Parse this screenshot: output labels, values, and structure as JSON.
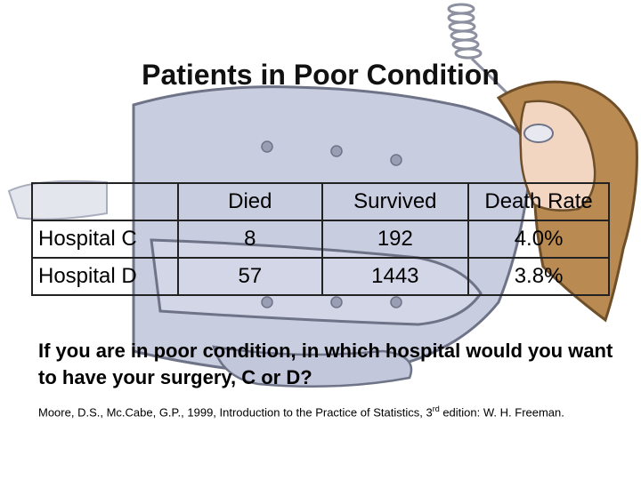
{
  "title": "Patients in Poor Condition",
  "table": {
    "headers": [
      "",
      "Died",
      "Survived",
      "Death Rate"
    ],
    "rows": [
      {
        "label": "Hospital C",
        "died": "8",
        "survived": "192",
        "rate": "4.0%"
      },
      {
        "label": "Hospital D",
        "died": "57",
        "survived": "1443",
        "rate": "3.8%"
      }
    ]
  },
  "question": "If you are in poor condition, in which hospital would you want to have your surgery, C or D?",
  "citation": {
    "text": "Moore, D.S., Mc.Cabe, G.P., 1999, Introduction to the Practice of Statistics, 3",
    "sup": "rd",
    "tail": " edition: W. H. Freeman."
  },
  "colors": {
    "gown": "#c9cde0",
    "gown_outline": "#6f7387",
    "hair": "#b98a52",
    "skin": "#f2d6c2"
  },
  "illustration": "patient-lying-in-bed-clipart"
}
